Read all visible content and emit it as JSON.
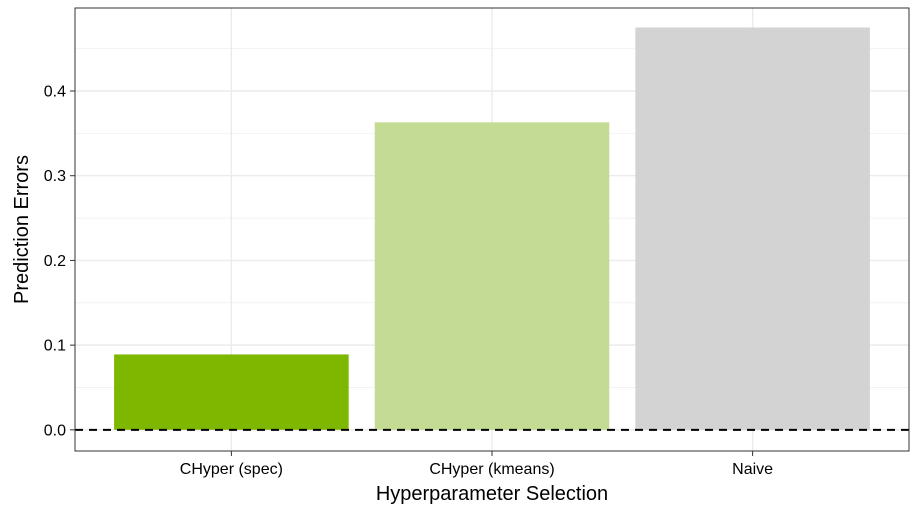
{
  "chart_data": {
    "type": "bar",
    "categories": [
      "CHyper (spec)",
      "CHyper (kmeans)",
      "Naive"
    ],
    "values": [
      0.089,
      0.363,
      0.475
    ],
    "colors": [
      "#7db700",
      "#c4db94",
      "#d3d3d3"
    ],
    "xlabel": "Hyperparameter Selection",
    "ylabel": "Prediction Errors",
    "ylim": [
      -0.025,
      0.498
    ],
    "yticks": [
      0.0,
      0.1,
      0.2,
      0.3,
      0.4
    ],
    "ytick_labels": [
      "0.0",
      "0.1",
      "0.2",
      "0.3",
      "0.4"
    ],
    "reference_line": {
      "y": 0,
      "style": "dashed",
      "color": "#000000"
    },
    "grid": true,
    "theme": "bw"
  }
}
